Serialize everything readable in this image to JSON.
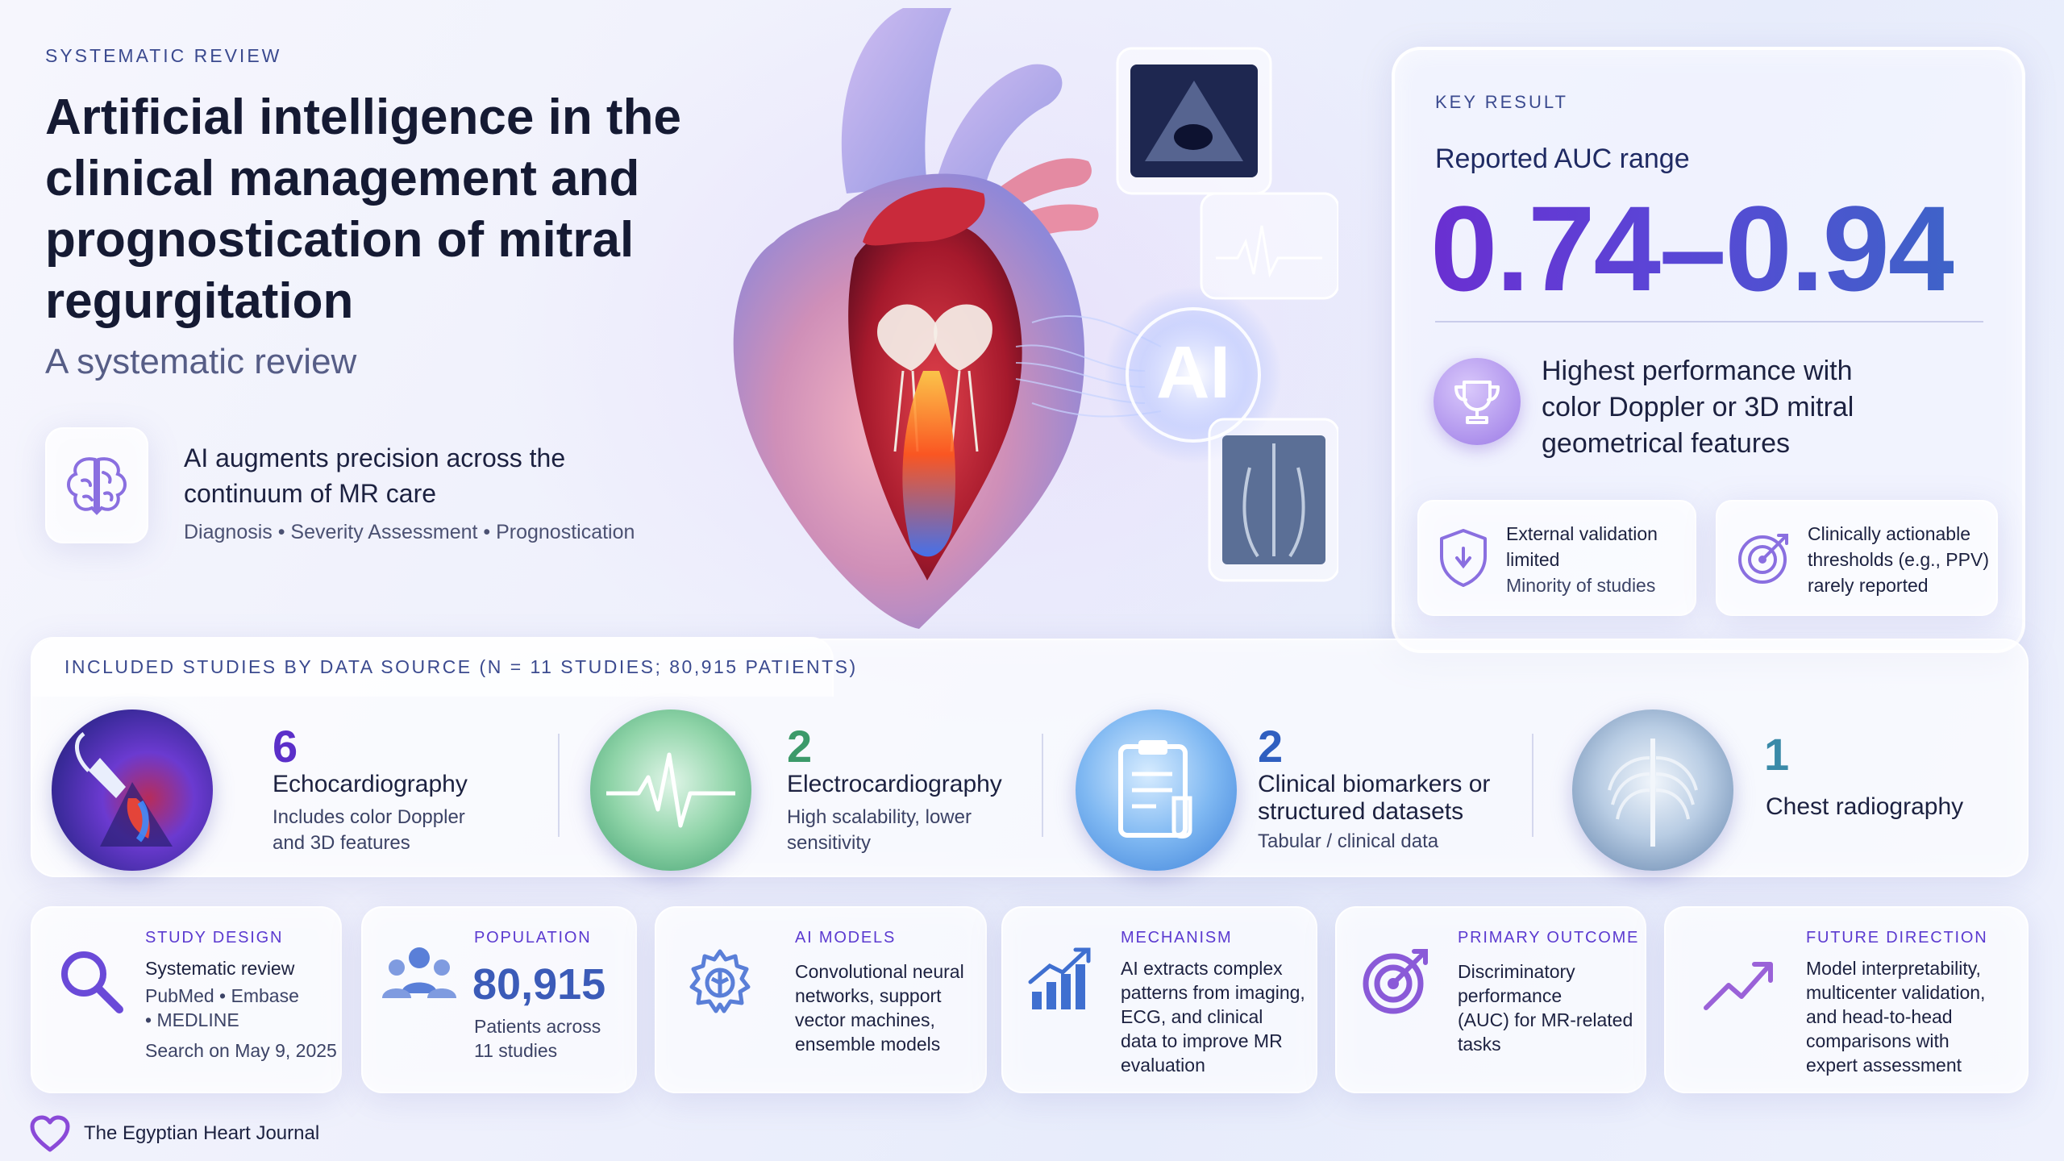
{
  "header": {
    "eyebrow": "SYSTEMATIC REVIEW",
    "title": "Artificial intelligence in the clinical management and prognostication of mitral regurgitation",
    "subtitle": "A systematic review",
    "tagline": "AI augments precision across the continuum of MR care",
    "tagline_sub": "Diagnosis • Severity Assessment • Prognostication"
  },
  "hero": {
    "ai_label": "AI"
  },
  "key_result": {
    "eyebrow": "KEY RESULT",
    "label": "Reported AUC range",
    "range": "0.74–0.94",
    "highlight": "Highest performance with color Doppler or 3D mitral geometrical features",
    "cards": [
      {
        "title": "External validation limited",
        "note": "Minority of studies"
      },
      {
        "title": "Clinically actionable thresholds (e.g., PPV) rarely reported",
        "note": ""
      }
    ]
  },
  "studies": {
    "heading": "INCLUDED STUDIES BY DATA SOURCE (N = 11 STUDIES; 80,915 PATIENTS)",
    "sources": [
      {
        "count": "6",
        "name": "Echocardiography",
        "note": "Includes color Doppler and 3D features",
        "color": "#5b2fc9"
      },
      {
        "count": "2",
        "name": "Electrocardiography",
        "note": "High scalability, lower sensitivity",
        "color": "#3c9a6a"
      },
      {
        "count": "2",
        "name": "Clinical biomarkers or structured datasets",
        "note": "Tabular / clinical data",
        "color": "#2f5fc0"
      },
      {
        "count": "1",
        "name": "Chest radiography",
        "note": "",
        "color": "#3a8aa8"
      }
    ]
  },
  "details": [
    {
      "eyebrow": "STUDY DESIGN",
      "title": "Systematic review",
      "lines": [
        "PubMed • Embase",
        "• MEDLINE",
        "Search on May 9, 2025"
      ],
      "icon": "magnifier-icon"
    },
    {
      "eyebrow": "POPULATION",
      "title": "80,915",
      "lines": [
        "Patients across",
        "11 studies"
      ],
      "icon": "people-icon"
    },
    {
      "eyebrow": "AI MODELS",
      "title": "",
      "lines": [
        "Convolutional neural",
        "networks, support",
        "vector machines,",
        "ensemble models"
      ],
      "icon": "gear-icon"
    },
    {
      "eyebrow": "MECHANISM",
      "title": "",
      "lines": [
        "AI extracts complex",
        "patterns from imaging,",
        "ECG, and clinical",
        "data to improve MR",
        "evaluation"
      ],
      "icon": "bar-chart-icon"
    },
    {
      "eyebrow": "PRIMARY OUTCOME",
      "title": "",
      "lines": [
        "Discriminatory",
        "performance",
        "(AUC) for MR-related",
        "tasks"
      ],
      "icon": "target-icon"
    },
    {
      "eyebrow": "FUTURE DIRECTION",
      "title": "",
      "lines": [
        "Model interpretability,",
        "multicenter validation,",
        "and head-to-head",
        "comparisons with",
        "expert assessment"
      ],
      "icon": "trend-up-icon"
    }
  ],
  "footer": {
    "journal": "The Egyptian Heart Journal"
  },
  "colors": {
    "accent_purple": "#6a3fd0",
    "title_ink": "#151a33",
    "eyebrow_blue": "#3b4a8f"
  }
}
